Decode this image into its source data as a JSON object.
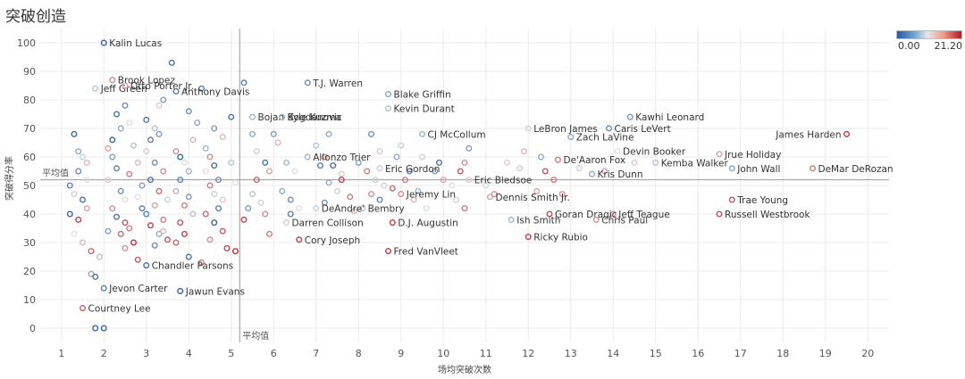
{
  "title": "突破创造",
  "legend": {
    "min_label": "0.00",
    "max_label": "21.20",
    "colors": [
      "#2a5a9a",
      "#e6e6e6",
      "#b3192a"
    ]
  },
  "chart_data": {
    "type": "scatter",
    "title": "突破创造",
    "xlabel": "场均突破次数",
    "ylabel": "突破得分率",
    "xlim": [
      0.5,
      20.5
    ],
    "ylim": [
      -5,
      105
    ],
    "xticks": [
      1,
      2,
      3,
      4,
      5,
      6,
      7,
      8,
      9,
      10,
      11,
      12,
      13,
      14,
      15,
      16,
      17,
      18,
      19,
      20
    ],
    "yticks": [
      0,
      10,
      20,
      30,
      40,
      50,
      60,
      70,
      80,
      90,
      100
    ],
    "grid": true,
    "reference_lines": {
      "x_avg": 5.2,
      "y_avg": 52,
      "x_label": "平均值",
      "y_label": "平均值"
    },
    "color_range": [
      0.0,
      21.2
    ],
    "labeled_points": [
      {
        "name": "Kalin Lucas",
        "x": 2.0,
        "y": 100,
        "c": 1
      },
      {
        "name": "Brook Lopez",
        "x": 2.2,
        "y": 87,
        "c": 15
      },
      {
        "name": "Jeff Green",
        "x": 1.8,
        "y": 84,
        "c": 8
      },
      {
        "name": "Otto Porter Jr.",
        "x": 2.5,
        "y": 85,
        "c": 14
      },
      {
        "name": "Anthony Davis",
        "x": 3.7,
        "y": 83,
        "c": 3
      },
      {
        "name": "T.J. Warren",
        "x": 6.8,
        "y": 86,
        "c": 4
      },
      {
        "name": "Blake Griffin",
        "x": 8.7,
        "y": 82,
        "c": 6
      },
      {
        "name": "Bojan Bogdanovic",
        "x": 5.5,
        "y": 74,
        "c": 7
      },
      {
        "name": "Kyle Kuzma",
        "x": 6.2,
        "y": 74,
        "c": 7
      },
      {
        "name": "Kevin Durant",
        "x": 8.7,
        "y": 77,
        "c": 8
      },
      {
        "name": "CJ McCollum",
        "x": 9.5,
        "y": 68,
        "c": 7
      },
      {
        "name": "LeBron James",
        "x": 12.0,
        "y": 70,
        "c": 12
      },
      {
        "name": "Kawhi Leonard",
        "x": 14.4,
        "y": 74,
        "c": 5
      },
      {
        "name": "Zach LaVine",
        "x": 13.0,
        "y": 67,
        "c": 6
      },
      {
        "name": "Caris LeVert",
        "x": 13.9,
        "y": 70,
        "c": 4
      },
      {
        "name": "James Harden",
        "x": 19.5,
        "y": 68,
        "c": 19
      },
      {
        "name": "Allonzo Trier",
        "x": 6.8,
        "y": 60,
        "c": 7
      },
      {
        "name": "Eric Gordon",
        "x": 8.5,
        "y": 56,
        "c": 9
      },
      {
        "name": "De'Aaron Fox",
        "x": 12.7,
        "y": 59,
        "c": 16
      },
      {
        "name": "Devin Booker",
        "x": 14.1,
        "y": 62,
        "c": 11
      },
      {
        "name": "Jrue Holiday",
        "x": 16.5,
        "y": 61,
        "c": 14
      },
      {
        "name": "DeMar DeRozan",
        "x": 18.7,
        "y": 56,
        "c": 16
      },
      {
        "name": "Kemba Walker",
        "x": 15.0,
        "y": 58,
        "c": 8
      },
      {
        "name": "John Wall",
        "x": 16.8,
        "y": 56,
        "c": 6
      },
      {
        "name": "Kris Dunn",
        "x": 13.5,
        "y": 54,
        "c": 6
      },
      {
        "name": "Eric Bledsoe",
        "x": 10.6,
        "y": 52,
        "c": 12
      },
      {
        "name": "Jeremy Lin",
        "x": 9.0,
        "y": 47,
        "c": 15
      },
      {
        "name": "Dennis Smith Jr.",
        "x": 11.1,
        "y": 46,
        "c": 14
      },
      {
        "name": "DeAndre' Bembry",
        "x": 7.0,
        "y": 42,
        "c": 9
      },
      {
        "name": "Jeff Teague",
        "x": 14.0,
        "y": 40,
        "c": 15
      },
      {
        "name": "Trae Young",
        "x": 16.8,
        "y": 45,
        "c": 18
      },
      {
        "name": "Russell Westbrook",
        "x": 16.5,
        "y": 40,
        "c": 18
      },
      {
        "name": "Darren Collison",
        "x": 6.3,
        "y": 37,
        "c": 12
      },
      {
        "name": "D.J. Augustin",
        "x": 8.8,
        "y": 37,
        "c": 19
      },
      {
        "name": "Goran Dragic",
        "x": 12.5,
        "y": 40,
        "c": 18
      },
      {
        "name": "Ish Smith",
        "x": 11.6,
        "y": 38,
        "c": 7
      },
      {
        "name": "Chris Paul",
        "x": 13.6,
        "y": 38,
        "c": 15
      },
      {
        "name": "Ricky Rubio",
        "x": 12.0,
        "y": 32,
        "c": 19
      },
      {
        "name": "Cory Joseph",
        "x": 6.6,
        "y": 31,
        "c": 19
      },
      {
        "name": "Fred VanVleet",
        "x": 8.7,
        "y": 27,
        "c": 19
      },
      {
        "name": "Chandler Parsons",
        "x": 3.0,
        "y": 22,
        "c": 2
      },
      {
        "name": "Jawun Evans",
        "x": 3.8,
        "y": 13,
        "c": 1
      },
      {
        "name": "Jevon Carter",
        "x": 2.0,
        "y": 14,
        "c": 3
      },
      {
        "name": "Courtney Lee",
        "x": 1.5,
        "y": 7,
        "c": 17
      }
    ],
    "unlabeled_points": [
      [
        1.8,
        0,
        1
      ],
      [
        2.0,
        0,
        1
      ],
      [
        1.7,
        19,
        6
      ],
      [
        1.8,
        18,
        2
      ],
      [
        1.5,
        60,
        9
      ],
      [
        1.3,
        68,
        1
      ],
      [
        1.4,
        62,
        6
      ],
      [
        1.6,
        58,
        13
      ],
      [
        1.4,
        55,
        4
      ],
      [
        1.2,
        50,
        3
      ],
      [
        1.3,
        47,
        12
      ],
      [
        1.5,
        45,
        2
      ],
      [
        1.6,
        42,
        14
      ],
      [
        1.4,
        38,
        19
      ],
      [
        1.3,
        33,
        11
      ],
      [
        1.5,
        30,
        13
      ],
      [
        1.7,
        27,
        17
      ],
      [
        1.9,
        25,
        8
      ],
      [
        1.2,
        40,
        1
      ],
      [
        1.6,
        52,
        10
      ],
      [
        2.2,
        60,
        5
      ],
      [
        2.3,
        56,
        3
      ],
      [
        2.1,
        52,
        12
      ],
      [
        2.4,
        48,
        4
      ],
      [
        2.5,
        45,
        11
      ],
      [
        2.2,
        42,
        15
      ],
      [
        2.3,
        39,
        2
      ],
      [
        2.5,
        37,
        18
      ],
      [
        2.6,
        35,
        16
      ],
      [
        2.1,
        34,
        5
      ],
      [
        2.4,
        33,
        17
      ],
      [
        2.7,
        30,
        20
      ],
      [
        2.5,
        28,
        15
      ],
      [
        2.8,
        24,
        18
      ],
      [
        2.2,
        66,
        1
      ],
      [
        2.4,
        70,
        6
      ],
      [
        2.6,
        72,
        10
      ],
      [
        2.3,
        75,
        2
      ],
      [
        2.5,
        78,
        4
      ],
      [
        2.1,
        63,
        14
      ],
      [
        2.7,
        64,
        8
      ],
      [
        2.8,
        58,
        13
      ],
      [
        2.6,
        54,
        16
      ],
      [
        2.9,
        50,
        5
      ],
      [
        2.8,
        46,
        11
      ],
      [
        2.9,
        42,
        3
      ],
      [
        3.1,
        66,
        3
      ],
      [
        3.2,
        70,
        8
      ],
      [
        3.3,
        68,
        5
      ],
      [
        3.0,
        62,
        12
      ],
      [
        3.2,
        58,
        4
      ],
      [
        3.4,
        55,
        15
      ],
      [
        3.1,
        52,
        2
      ],
      [
        3.3,
        48,
        17
      ],
      [
        3.5,
        45,
        9
      ],
      [
        3.2,
        43,
        14
      ],
      [
        3.0,
        40,
        3
      ],
      [
        3.4,
        38,
        16
      ],
      [
        3.1,
        36,
        19
      ],
      [
        3.3,
        33,
        6
      ],
      [
        3.5,
        31,
        18
      ],
      [
        3.2,
        29,
        4
      ],
      [
        3.4,
        34,
        13
      ],
      [
        3.0,
        73,
        2
      ],
      [
        3.3,
        78,
        12
      ],
      [
        3.4,
        80,
        5
      ],
      [
        3.6,
        93,
        2
      ],
      [
        3.7,
        62,
        15
      ],
      [
        3.8,
        60,
        1
      ],
      [
        3.9,
        58,
        10
      ],
      [
        4.0,
        55,
        7
      ],
      [
        3.8,
        52,
        3
      ],
      [
        3.7,
        48,
        14
      ],
      [
        4.0,
        46,
        5
      ],
      [
        3.9,
        43,
        16
      ],
      [
        4.1,
        40,
        8
      ],
      [
        3.8,
        37,
        18
      ],
      [
        3.9,
        33,
        19
      ],
      [
        3.7,
        30,
        17
      ],
      [
        4.0,
        25,
        2
      ],
      [
        4.2,
        72,
        6
      ],
      [
        4.0,
        76,
        4
      ],
      [
        4.3,
        84,
        3
      ],
      [
        4.1,
        66,
        13
      ],
      [
        4.4,
        63,
        7
      ],
      [
        4.5,
        60,
        15
      ],
      [
        4.6,
        57,
        2
      ],
      [
        4.4,
        55,
        11
      ],
      [
        4.7,
        52,
        4
      ],
      [
        4.5,
        50,
        16
      ],
      [
        4.6,
        47,
        9
      ],
      [
        4.8,
        45,
        12
      ],
      [
        4.7,
        42,
        3
      ],
      [
        4.4,
        40,
        17
      ],
      [
        4.6,
        37,
        1
      ],
      [
        4.8,
        34,
        18
      ],
      [
        4.5,
        31,
        15
      ],
      [
        4.9,
        28,
        19
      ],
      [
        4.6,
        70,
        5
      ],
      [
        4.8,
        67,
        13
      ],
      [
        5.0,
        74,
        2
      ],
      [
        5.0,
        58,
        8
      ],
      [
        5.1,
        51,
        11
      ],
      [
        5.1,
        27,
        20
      ],
      [
        4.3,
        23,
        16
      ],
      [
        5.3,
        86,
        3
      ],
      [
        5.5,
        68,
        6
      ],
      [
        5.6,
        62,
        9
      ],
      [
        5.8,
        58,
        2
      ],
      [
        5.9,
        55,
        14
      ],
      [
        5.6,
        52,
        17
      ],
      [
        5.5,
        47,
        8
      ],
      [
        5.7,
        44,
        12
      ],
      [
        5.4,
        42,
        5
      ],
      [
        5.8,
        40,
        15
      ],
      [
        5.3,
        38,
        19
      ],
      [
        5.9,
        33,
        16
      ],
      [
        6.0,
        68,
        5
      ],
      [
        6.1,
        65,
        13
      ],
      [
        6.3,
        58,
        7
      ],
      [
        6.5,
        55,
        10
      ],
      [
        6.2,
        48,
        6
      ],
      [
        6.4,
        45,
        4
      ],
      [
        6.6,
        42,
        11
      ],
      [
        6.4,
        40,
        3
      ],
      [
        7.0,
        64,
        8
      ],
      [
        7.2,
        60,
        15
      ],
      [
        7.4,
        57,
        2
      ],
      [
        7.6,
        54,
        12
      ],
      [
        7.3,
        51,
        6
      ],
      [
        7.5,
        48,
        9
      ],
      [
        7.8,
        46,
        16
      ],
      [
        7.2,
        44,
        4
      ],
      [
        7.9,
        41,
        13
      ],
      [
        7.6,
        52,
        19
      ],
      [
        7.1,
        57,
        3
      ],
      [
        7.3,
        68,
        6
      ],
      [
        8.0,
        58,
        5
      ],
      [
        8.2,
        55,
        16
      ],
      [
        8.4,
        52,
        9
      ],
      [
        8.6,
        50,
        12
      ],
      [
        8.3,
        47,
        15
      ],
      [
        8.5,
        45,
        3
      ],
      [
        8.8,
        49,
        17
      ],
      [
        8.1,
        42,
        8
      ],
      [
        8.3,
        68,
        4
      ],
      [
        8.5,
        62,
        12
      ],
      [
        8.9,
        60,
        6
      ],
      [
        9.0,
        64,
        9
      ],
      [
        9.1,
        52,
        16
      ],
      [
        9.2,
        55,
        3
      ],
      [
        9.4,
        48,
        7
      ],
      [
        9.3,
        45,
        13
      ],
      [
        9.6,
        42,
        10
      ],
      [
        9.5,
        60,
        9
      ],
      [
        9.8,
        55,
        5
      ],
      [
        10.0,
        52,
        14
      ],
      [
        10.2,
        50,
        11
      ],
      [
        10.4,
        55,
        18
      ],
      [
        10.6,
        63,
        5
      ],
      [
        10.5,
        58,
        15
      ],
      [
        9.9,
        58,
        2
      ],
      [
        10.3,
        45,
        12
      ],
      [
        10.5,
        42,
        16
      ],
      [
        11.0,
        50,
        10
      ],
      [
        11.2,
        47,
        15
      ],
      [
        11.5,
        58,
        12
      ],
      [
        11.8,
        56,
        9
      ],
      [
        11.9,
        62,
        13
      ],
      [
        12.2,
        48,
        14
      ],
      [
        12.4,
        55,
        18
      ],
      [
        12.6,
        52,
        16
      ],
      [
        12.8,
        47,
        15
      ],
      [
        12.3,
        60,
        6
      ],
      [
        13.2,
        56,
        9
      ],
      [
        13.8,
        55,
        14
      ],
      [
        14.5,
        58,
        12
      ]
    ]
  }
}
